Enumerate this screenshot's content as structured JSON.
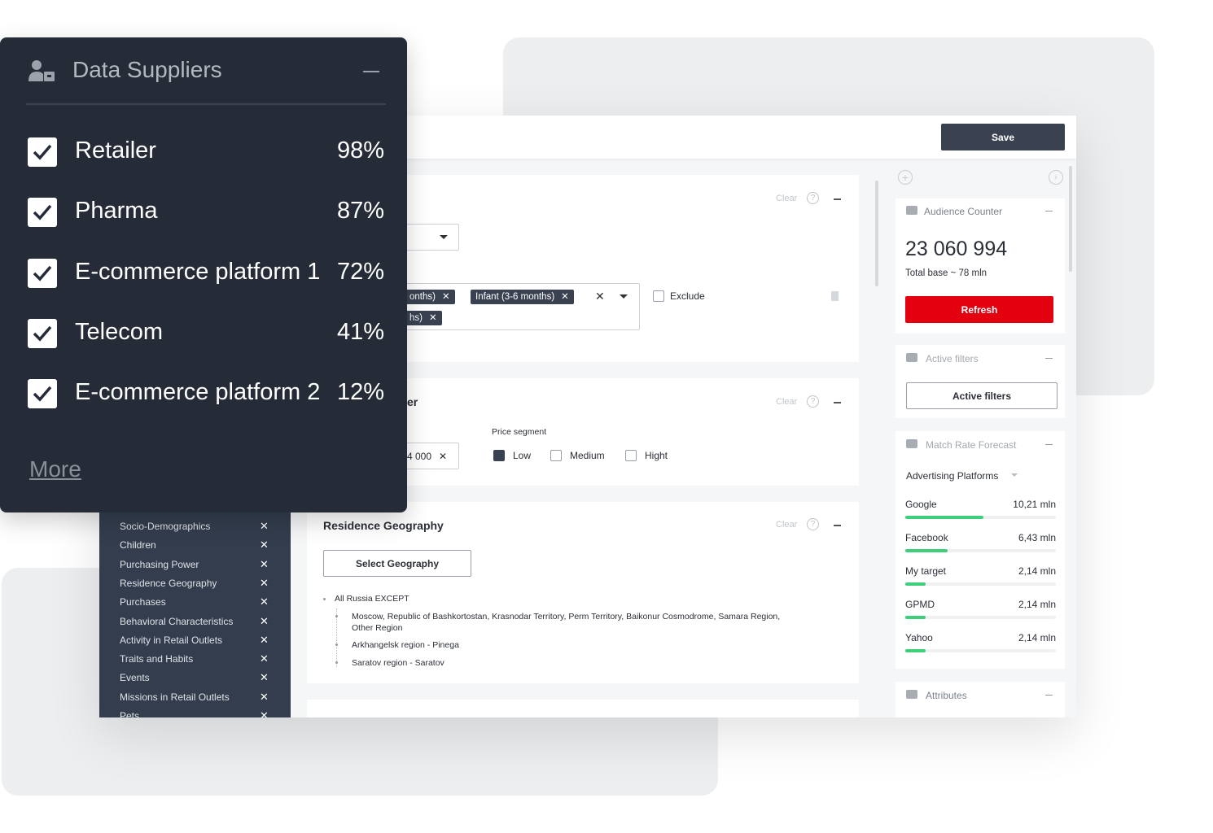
{
  "suppliers": {
    "title": "Data Suppliers",
    "items": [
      {
        "name": "Retailer",
        "share": "98%"
      },
      {
        "name": "Pharma",
        "share": "87%"
      },
      {
        "name": "E-commerce platform 1",
        "share": "72%"
      },
      {
        "name": "Telecom",
        "share": "41%"
      },
      {
        "name": "E-commerce platform 2",
        "share": "12%"
      }
    ],
    "more": "More"
  },
  "header": {
    "save": "Save"
  },
  "sidebar": {
    "items": [
      "Socio-Demographics",
      "Children",
      "Purchasing Power",
      "Residence Geography",
      "Purchases",
      "Behavioral Characteristics",
      "Activity in Retail Outlets",
      "Traits and Habits",
      "Events",
      "Missions in Retail Outlets",
      "Pets"
    ]
  },
  "section_1": {
    "clear": "Clear",
    "tags": [
      "onths)",
      "Infant (3-6 months)",
      "hs)"
    ],
    "exclude": "Exclude"
  },
  "section_2": {
    "title": "er",
    "clear": "Clear",
    "input": "4 000",
    "price_segment": {
      "label": "Price segment",
      "options": [
        "Low",
        "Medium",
        "Hight"
      ]
    }
  },
  "section_3": {
    "title": "Residence Geography",
    "clear": "Clear",
    "button": "Select Geography",
    "tree": {
      "label": "All Russia EXCEPT",
      "children": [
        "Moscow, Republic of Bashkortostan, Krasnodar Territory, Perm Territory, Baikonur Cosmodrome, Samara Region, Other Region",
        "Arkhangelsk region - Pinega",
        "Saratov region - Saratov"
      ]
    }
  },
  "audience_counter": {
    "title": "Audience Counter",
    "count": "23 060 994",
    "total": "Total base ~ 78 mln",
    "refresh": "Refresh"
  },
  "active_filters": {
    "title": "Active filters",
    "button": "Active filters"
  },
  "match_rate": {
    "title": "Match Rate Forecast",
    "dropdown": "Advertising Platforms",
    "platforms": [
      {
        "name": "Google",
        "value": "10,21 mln"
      },
      {
        "name": "Facebook",
        "value": "6,43 mln"
      },
      {
        "name": "My target",
        "value": "2,14 mln"
      },
      {
        "name": "GPMD",
        "value": "2,14 mln"
      },
      {
        "name": "Yahoo",
        "value": "2,14 mln"
      }
    ]
  },
  "attributes": {
    "title": "Attributes"
  }
}
